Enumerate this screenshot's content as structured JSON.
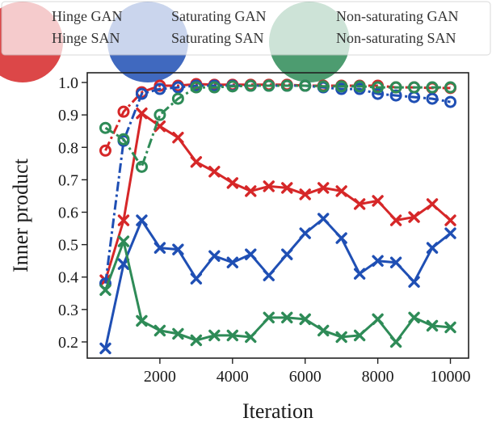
{
  "chart_data": {
    "type": "line",
    "xlabel": "Iteration",
    "ylabel": "Inner product",
    "xlim": [
      0,
      10500
    ],
    "ylim": [
      0.15,
      1.03
    ],
    "xticks": [
      2000,
      4000,
      6000,
      8000,
      10000
    ],
    "yticks": [
      0.2,
      0.3,
      0.4,
      0.5,
      0.6,
      0.7,
      0.8,
      0.9,
      1.0
    ],
    "grid": false,
    "legend_position": "top",
    "x": [
      500,
      1000,
      1500,
      2000,
      2500,
      3000,
      3500,
      4000,
      4500,
      5000,
      5500,
      6000,
      6500,
      7000,
      7500,
      8000,
      8500,
      9000,
      9500,
      10000
    ],
    "series": [
      {
        "name": "Hinge GAN",
        "color": "#d62728",
        "marker": "circle",
        "line": "dashdot",
        "values": [
          0.79,
          0.91,
          0.97,
          0.99,
          0.99,
          0.995,
          0.993,
          0.993,
          0.993,
          0.993,
          0.993,
          0.99,
          0.99,
          0.99,
          0.99,
          0.99,
          0.985,
          0.985,
          0.983,
          0.983
        ]
      },
      {
        "name": "Hinge SAN",
        "color": "#d62728",
        "marker": "x",
        "line": "solid",
        "values": [
          0.39,
          0.575,
          0.905,
          0.865,
          0.83,
          0.755,
          0.725,
          0.69,
          0.665,
          0.68,
          0.675,
          0.655,
          0.675,
          0.665,
          0.625,
          0.635,
          0.575,
          0.585,
          0.625,
          0.575
        ]
      },
      {
        "name": "Saturating GAN",
        "color": "#1f4fb4",
        "marker": "circle",
        "line": "dashdot",
        "values": [
          0.38,
          0.82,
          0.965,
          0.98,
          0.985,
          0.99,
          0.99,
          0.99,
          0.99,
          0.99,
          0.99,
          0.99,
          0.985,
          0.98,
          0.98,
          0.965,
          0.96,
          0.955,
          0.95,
          0.94
        ]
      },
      {
        "name": "Saturating SAN",
        "color": "#1f4fb4",
        "marker": "x",
        "line": "solid",
        "values": [
          0.18,
          0.44,
          0.575,
          0.49,
          0.485,
          0.395,
          0.465,
          0.445,
          0.47,
          0.405,
          0.47,
          0.535,
          0.58,
          0.52,
          0.41,
          0.45,
          0.445,
          0.385,
          0.49,
          0.535
        ]
      },
      {
        "name": "Non-saturating GAN",
        "color": "#2e8b57",
        "marker": "circle",
        "line": "dashdot",
        "values": [
          0.86,
          0.825,
          0.74,
          0.9,
          0.95,
          0.985,
          0.985,
          0.988,
          0.99,
          0.99,
          0.99,
          0.99,
          0.988,
          0.988,
          0.988,
          0.985,
          0.985,
          0.985,
          0.985,
          0.985
        ]
      },
      {
        "name": "Non-saturating SAN",
        "color": "#2e8b57",
        "marker": "x",
        "line": "solid",
        "values": [
          0.36,
          0.51,
          0.265,
          0.235,
          0.225,
          0.205,
          0.22,
          0.22,
          0.215,
          0.275,
          0.275,
          0.27,
          0.235,
          0.215,
          0.22,
          0.27,
          0.2,
          0.275,
          0.25,
          0.245
        ]
      }
    ]
  }
}
